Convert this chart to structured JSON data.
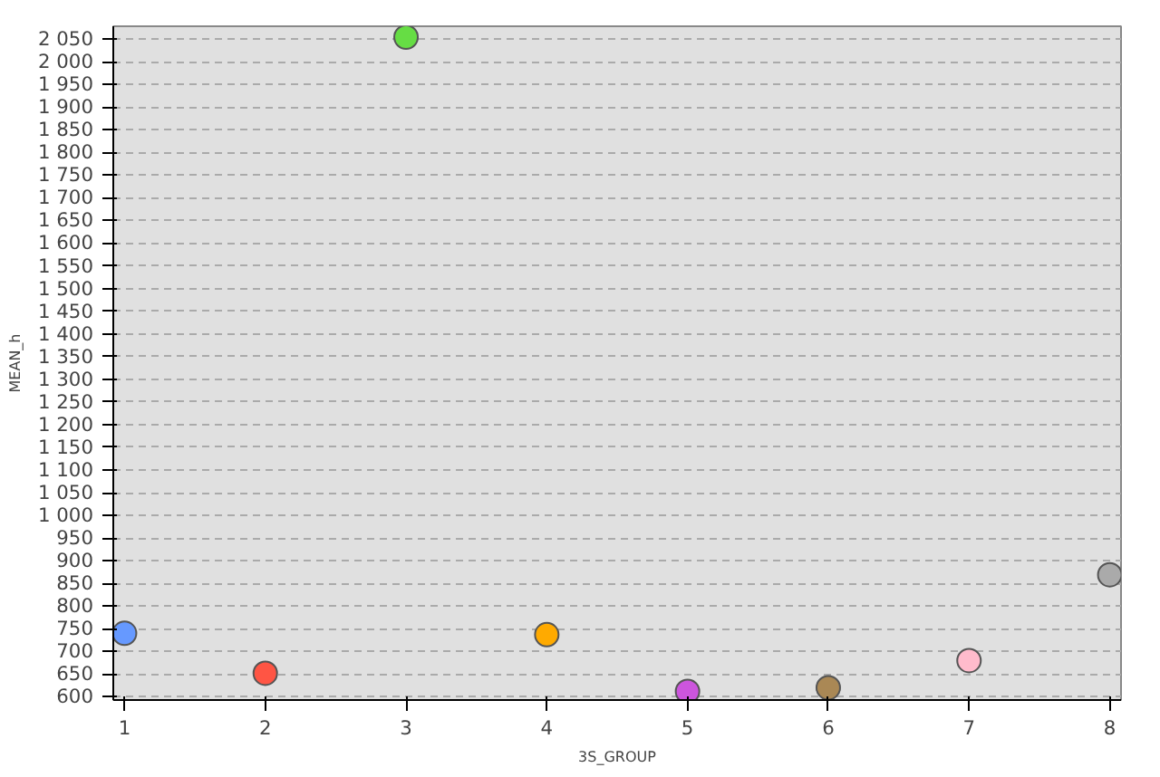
{
  "chart_data": {
    "type": "scatter",
    "xlabel": "3S_GROUP",
    "ylabel": "MEAN_h",
    "x": [
      1,
      2,
      3,
      4,
      5,
      6,
      7,
      8
    ],
    "values": [
      740,
      652,
      2054,
      737,
      612,
      620,
      680,
      869
    ],
    "colors": [
      "#6699ff",
      "#ff5544",
      "#66dd44",
      "#ffaa00",
      "#cc55dd",
      "#aa8855",
      "#ffbbcc",
      "#aaaaaa"
    ],
    "marker": "circle",
    "grid": "y",
    "xlim": [
      0.92,
      8.08
    ],
    "ylim": [
      593,
      2078
    ],
    "xticks": [
      1,
      2,
      3,
      4,
      5,
      6,
      7,
      8
    ],
    "yticks": [
      600,
      650,
      700,
      750,
      800,
      850,
      900,
      950,
      {
        "value": 1000,
        "label": "1 000"
      },
      {
        "value": 1050,
        "label": "1 050"
      },
      {
        "value": 1100,
        "label": "1 100"
      },
      {
        "value": 1150,
        "label": "1 150"
      },
      {
        "value": 1200,
        "label": "1 200"
      },
      {
        "value": 1250,
        "label": "1 250"
      },
      {
        "value": 1300,
        "label": "1 300"
      },
      {
        "value": 1350,
        "label": "1 350"
      },
      {
        "value": 1400,
        "label": "1 400"
      },
      {
        "value": 1450,
        "label": "1 450"
      },
      {
        "value": 1500,
        "label": "1 500"
      },
      {
        "value": 1550,
        "label": "1 550"
      },
      {
        "value": 1600,
        "label": "1 600"
      },
      {
        "value": 1650,
        "label": "1 650"
      },
      {
        "value": 1700,
        "label": "1 700"
      },
      {
        "value": 1750,
        "label": "1 750"
      },
      {
        "value": 1800,
        "label": "1 800"
      },
      {
        "value": 1850,
        "label": "1 850"
      },
      {
        "value": 1900,
        "label": "1 900"
      },
      {
        "value": 1950,
        "label": "1 950"
      },
      {
        "value": 2000,
        "label": "2 000"
      },
      {
        "value": 2050,
        "label": "2 050"
      }
    ]
  }
}
